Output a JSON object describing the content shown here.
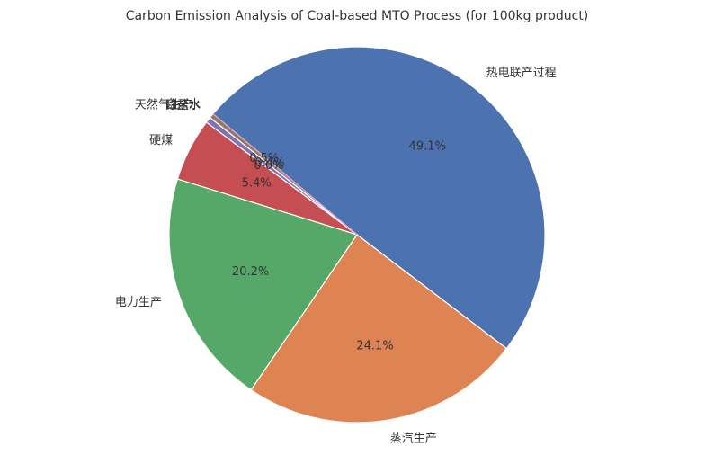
{
  "chart_data": {
    "type": "pie",
    "title": "Carbon Emission Analysis of Coal-based MTO Process (for 100kg product)",
    "start_angle_deg": 140,
    "direction": "clockwise",
    "slices": [
      {
        "label": "热电联产过程",
        "value": 49.1,
        "pct_label": "49.1%",
        "color": "#4c72b0"
      },
      {
        "label": "蒸汽生产",
        "value": 24.1,
        "pct_label": "24.1%",
        "color": "#dd8452"
      },
      {
        "label": "电力生产",
        "value": 20.2,
        "pct_label": "20.2%",
        "color": "#55a868"
      },
      {
        "label": "硬煤",
        "value": 5.4,
        "pct_label": "5.4%",
        "color": "#c44e52"
      },
      {
        "label": "自来水",
        "value": 0.5,
        "pct_label": "0.5%",
        "color": "#8172b3"
      },
      {
        "label": "除盐水",
        "value": 0.4,
        "pct_label": "0.4%",
        "color": "#937860"
      },
      {
        "label": "天然气生产",
        "value": 0.0,
        "pct_label": "0.0%",
        "color": "#da8bc3"
      }
    ],
    "legend": "none"
  }
}
